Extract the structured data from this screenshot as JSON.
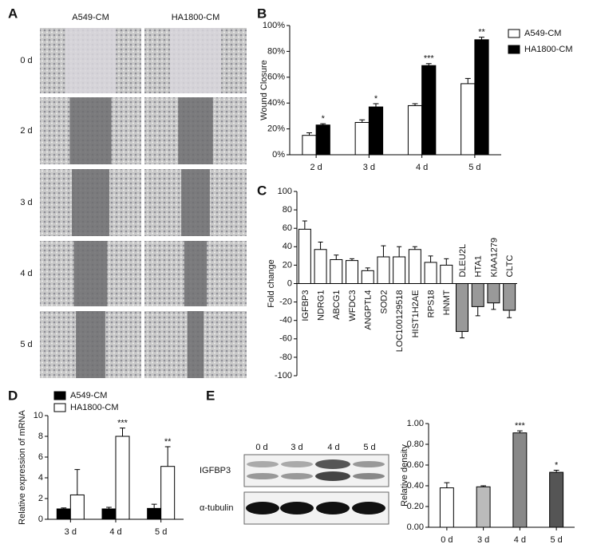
{
  "panel_labels": [
    "A",
    "B",
    "C",
    "D",
    "E"
  ],
  "panel_a": {
    "columns": [
      "A549-CM",
      "HA1800-CM"
    ],
    "rows": [
      "0 d",
      "2 d",
      "3 d",
      "4 d",
      "5 d"
    ]
  },
  "blot": {
    "lanes": [
      "0 d",
      "3 d",
      "4 d",
      "5 d"
    ],
    "bands": [
      "IGFBP3",
      "α-tubulin"
    ]
  },
  "chart_data": [
    {
      "type": "bar",
      "ylabel": "Wound Closure",
      "categories": [
        "2 d",
        "3 d",
        "4 d",
        "5 d"
      ],
      "series": [
        {
          "name": "A549-CM",
          "color": "#ffffff",
          "values": [
            15,
            25,
            38,
            55
          ],
          "errors": [
            2,
            2,
            1.5,
            4
          ]
        },
        {
          "name": "HA1800-CM",
          "color": "#000000",
          "values": [
            23,
            37,
            69,
            89
          ],
          "errors": [
            1,
            2.5,
            1.5,
            2
          ]
        }
      ],
      "significance": [
        "*",
        "*",
        "***",
        "**"
      ],
      "ylim": [
        0,
        100
      ],
      "yticks": [
        {
          "value": 0,
          "label": "0%"
        },
        {
          "value": 20,
          "label": "20%"
        },
        {
          "value": 40,
          "label": "40%"
        },
        {
          "value": 60,
          "label": "60%"
        },
        {
          "value": 80,
          "label": "80%"
        },
        {
          "value": 100,
          "label": "100%"
        }
      ]
    },
    {
      "type": "bar",
      "ylabel": "Fold change",
      "categories": [
        "IGFBP3",
        "NDRG1",
        "ABCG1",
        "WFDC3",
        "ANGPTL4",
        "SOD2",
        "LOC100129518",
        "HIST1H2AE",
        "RPS18",
        "HNMT",
        "DLEU2L",
        "HTA1",
        "KIAA1279",
        "CLTC"
      ],
      "values": [
        59,
        37,
        26,
        25,
        14,
        29,
        29,
        37,
        23,
        20,
        -52,
        -25,
        -21,
        -29
      ],
      "errors": [
        9,
        8,
        5,
        2,
        3,
        12,
        11,
        3,
        7,
        7,
        7,
        10,
        7,
        8
      ],
      "colors": [
        "#ffffff",
        "#ffffff",
        "#ffffff",
        "#ffffff",
        "#ffffff",
        "#ffffff",
        "#ffffff",
        "#ffffff",
        "#ffffff",
        "#ffffff",
        "#999999",
        "#999999",
        "#999999",
        "#999999"
      ],
      "ylim": [
        -100,
        100
      ],
      "yticks": [
        -100,
        -80,
        -60,
        -40,
        -20,
        0,
        20,
        40,
        60,
        80,
        100
      ]
    },
    {
      "type": "bar",
      "ylabel": "Relative expression of mRNA",
      "categories": [
        "3 d",
        "4 d",
        "5 d"
      ],
      "series": [
        {
          "name": "A549-CM",
          "color": "#000000",
          "values": [
            1.0,
            1.0,
            1.05
          ],
          "errors": [
            0.1,
            0.15,
            0.4
          ]
        },
        {
          "name": "HA1800-CM",
          "color": "#ffffff",
          "values": [
            2.35,
            8.0,
            5.1
          ],
          "errors": [
            2.45,
            0.8,
            1.9
          ]
        }
      ],
      "significance": [
        null,
        "***",
        "**"
      ],
      "ylim": [
        0,
        10
      ],
      "yticks": [
        0,
        2,
        4,
        6,
        8,
        10
      ]
    },
    {
      "type": "bar",
      "ylabel": "Relative density",
      "categories": [
        "0 d",
        "3 d",
        "4 d",
        "5 d"
      ],
      "values": [
        0.38,
        0.39,
        0.91,
        0.53
      ],
      "errors": [
        0.05,
        0.01,
        0.02,
        0.02
      ],
      "colors": [
        "#ffffff",
        "#bbbbbb",
        "#888888",
        "#555555"
      ],
      "significance": [
        null,
        null,
        "***",
        "*"
      ],
      "ylim": [
        0,
        1.0
      ],
      "yticks": [
        {
          "value": 0,
          "label": "0.00"
        },
        {
          "value": 0.2,
          "label": "0.20"
        },
        {
          "value": 0.4,
          "label": "0.40"
        },
        {
          "value": 0.6,
          "label": "0.60"
        },
        {
          "value": 0.8,
          "label": "0.80"
        },
        {
          "value": 1.0,
          "label": "1.00"
        }
      ]
    }
  ]
}
